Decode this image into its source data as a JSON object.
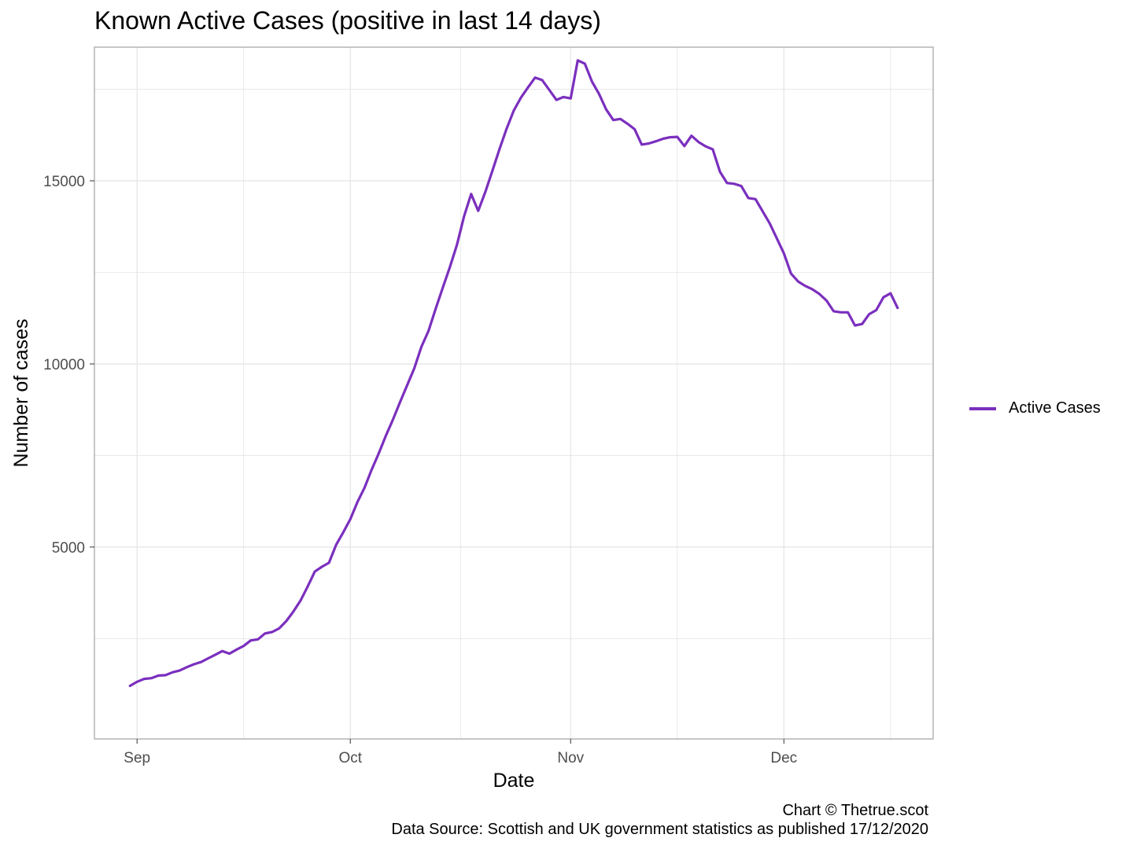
{
  "chart_data": {
    "type": "line",
    "title": "Known Active Cases (positive in last 14 days)",
    "xlabel": "Date",
    "ylabel": "Number of cases",
    "x_tick_labels": [
      {
        "date": "2020-09-01",
        "label": "Sep"
      },
      {
        "date": "2020-10-01",
        "label": "Oct"
      },
      {
        "date": "2020-11-01",
        "label": "Nov"
      },
      {
        "date": "2020-12-01",
        "label": "Dec"
      }
    ],
    "y_ticks": [
      5000,
      10000,
      15000
    ],
    "xlim": [
      "2020-08-26",
      "2020-12-22"
    ],
    "ylim": [
      -240,
      18650
    ],
    "grid": true,
    "legend_position": "right",
    "colors": {
      "series": "#7B2FBE",
      "grid": "#e4e4e4",
      "frame": "#b3b3b3"
    },
    "caption": [
      "Chart © Thetrue.scot",
      "Data Source: Scottish and UK government statistics as published 17/12/2020"
    ],
    "series": [
      {
        "name": "Active Cases",
        "x": [
          "2020-08-31",
          "2020-09-01",
          "2020-09-02",
          "2020-09-03",
          "2020-09-04",
          "2020-09-05",
          "2020-09-06",
          "2020-09-07",
          "2020-09-08",
          "2020-09-09",
          "2020-09-10",
          "2020-09-11",
          "2020-09-12",
          "2020-09-13",
          "2020-09-14",
          "2020-09-15",
          "2020-09-16",
          "2020-09-17",
          "2020-09-18",
          "2020-09-19",
          "2020-09-20",
          "2020-09-21",
          "2020-09-22",
          "2020-09-23",
          "2020-09-24",
          "2020-09-25",
          "2020-09-26",
          "2020-09-27",
          "2020-09-28",
          "2020-09-29",
          "2020-09-30",
          "2020-10-01",
          "2020-10-02",
          "2020-10-03",
          "2020-10-04",
          "2020-10-05",
          "2020-10-06",
          "2020-10-07",
          "2020-10-08",
          "2020-10-09",
          "2020-10-10",
          "2020-10-11",
          "2020-10-12",
          "2020-10-13",
          "2020-10-14",
          "2020-10-15",
          "2020-10-16",
          "2020-10-17",
          "2020-10-18",
          "2020-10-19",
          "2020-10-20",
          "2020-10-21",
          "2020-10-22",
          "2020-10-23",
          "2020-10-24",
          "2020-10-25",
          "2020-10-26",
          "2020-10-27",
          "2020-10-28",
          "2020-10-29",
          "2020-10-30",
          "2020-10-31",
          "2020-11-01",
          "2020-11-02",
          "2020-11-03",
          "2020-11-04",
          "2020-11-05",
          "2020-11-06",
          "2020-11-07",
          "2020-11-08",
          "2020-11-09",
          "2020-11-10",
          "2020-11-11",
          "2020-11-12",
          "2020-11-13",
          "2020-11-14",
          "2020-11-15",
          "2020-11-16",
          "2020-11-17",
          "2020-11-18",
          "2020-11-19",
          "2020-11-20",
          "2020-11-21",
          "2020-11-22",
          "2020-11-23",
          "2020-11-24",
          "2020-11-25",
          "2020-11-26",
          "2020-11-27",
          "2020-11-28",
          "2020-11-29",
          "2020-11-30",
          "2020-12-01",
          "2020-12-02",
          "2020-12-03",
          "2020-12-04",
          "2020-12-05",
          "2020-12-06",
          "2020-12-07",
          "2020-12-08",
          "2020-12-09",
          "2020-12-10",
          "2020-12-11",
          "2020-12-12",
          "2020-12-13",
          "2020-12-14",
          "2020-12-15",
          "2020-12-16",
          "2020-12-17"
        ],
        "y": [
          1210,
          1320,
          1400,
          1420,
          1490,
          1500,
          1580,
          1630,
          1720,
          1800,
          1860,
          1960,
          2060,
          2160,
          2090,
          2200,
          2300,
          2450,
          2480,
          2640,
          2680,
          2780,
          2980,
          3240,
          3540,
          3920,
          4330,
          4460,
          4570,
          5060,
          5400,
          5760,
          6230,
          6620,
          7110,
          7560,
          8040,
          8480,
          8960,
          9420,
          9880,
          10470,
          10900,
          11500,
          12080,
          12640,
          13250,
          14030,
          14640,
          14180,
          14700,
          15280,
          15870,
          16430,
          16920,
          17270,
          17550,
          17820,
          17750,
          17480,
          17210,
          17290,
          17250,
          18290,
          18200,
          17710,
          17370,
          16950,
          16660,
          16690,
          16560,
          16410,
          15990,
          16020,
          16080,
          16150,
          16190,
          16200,
          15950,
          16230,
          16060,
          15940,
          15860,
          15250,
          14940,
          14920,
          14860,
          14530,
          14500,
          14170,
          13840,
          13430,
          13020,
          12470,
          12250,
          12130,
          12040,
          11910,
          11730,
          11440,
          11410,
          11410,
          11050,
          11090,
          11360,
          11470,
          11820,
          11930,
          11530
        ]
      }
    ]
  }
}
